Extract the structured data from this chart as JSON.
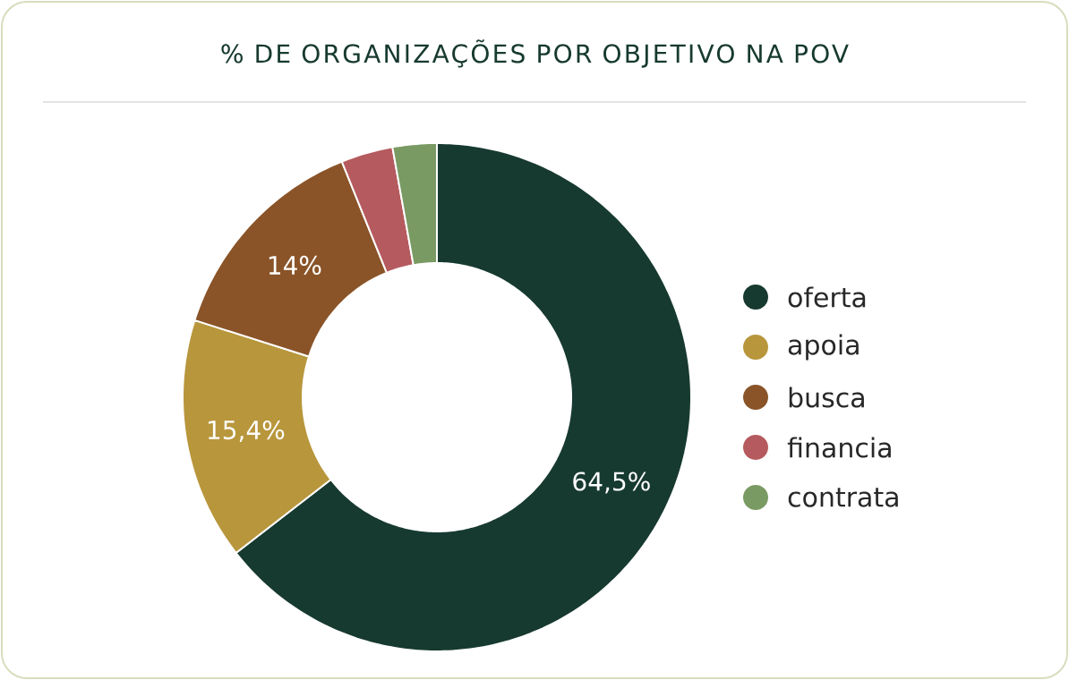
{
  "chart_data": {
    "type": "donut",
    "title": "% DE ORGANIZAÇÕES POR OBJETIVO NA POV",
    "categories": [
      "oferta",
      "apoia",
      "busca",
      "financia",
      "contrata"
    ],
    "values": [
      64.5,
      15.4,
      14,
      3.3,
      2.8
    ],
    "value_labels": [
      "64,5%",
      "15,4%",
      "14%",
      null,
      null
    ],
    "colors": [
      "#173a30",
      "#b8963c",
      "#8a5428",
      "#b55a5e",
      "#7a9a63"
    ],
    "legend": "right"
  }
}
